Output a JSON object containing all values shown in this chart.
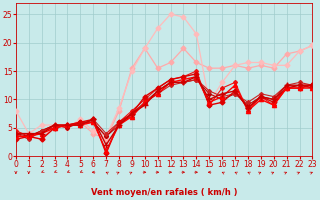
{
  "background_color": "#c8eaea",
  "grid_color": "#a0cccc",
  "xlabel": "Vent moyen/en rafales ( km/h )",
  "xlim": [
    0,
    23
  ],
  "ylim": [
    0,
    27
  ],
  "yticks": [
    0,
    5,
    10,
    15,
    20,
    25
  ],
  "xticks": [
    0,
    1,
    2,
    3,
    4,
    5,
    6,
    7,
    8,
    9,
    10,
    11,
    12,
    13,
    14,
    15,
    16,
    17,
    18,
    19,
    20,
    21,
    22,
    23
  ],
  "series": [
    {
      "x": [
        0,
        1,
        2,
        3,
        4,
        5,
        6,
        7,
        8,
        9,
        10,
        11,
        12,
        13,
        14,
        15,
        16,
        17,
        18,
        19,
        20,
        21,
        22,
        23
      ],
      "y": [
        3.0,
        3.5,
        3.0,
        5.0,
        5.5,
        6.0,
        6.5,
        0.5,
        6.0,
        7.5,
        10.5,
        12.0,
        13.5,
        14.0,
        14.5,
        9.0,
        9.5,
        11.5,
        8.5,
        10.5,
        9.5,
        12.0,
        12.0,
        12.5
      ],
      "color": "#dd0000",
      "marker": "D",
      "markersize": 2.5,
      "linewidth": 1.0,
      "zorder": 5
    },
    {
      "x": [
        0,
        1,
        2,
        3,
        4,
        5,
        6,
        7,
        8,
        9,
        10,
        11,
        12,
        13,
        14,
        15,
        16,
        17,
        18,
        19,
        20,
        21,
        22,
        23
      ],
      "y": [
        3.5,
        3.5,
        4.0,
        5.0,
        5.5,
        5.5,
        6.0,
        1.0,
        5.5,
        7.0,
        9.5,
        11.0,
        13.0,
        13.5,
        14.0,
        9.5,
        10.5,
        12.5,
        8.0,
        10.0,
        9.0,
        12.0,
        12.0,
        12.0
      ],
      "color": "#ff0000",
      "marker": "^",
      "markersize": 3,
      "linewidth": 1.0,
      "zorder": 5
    },
    {
      "x": [
        0,
        1,
        2,
        3,
        4,
        5,
        6,
        7,
        8,
        9,
        10,
        11,
        12,
        13,
        14,
        15,
        16,
        17,
        18,
        19,
        20,
        21,
        22,
        23
      ],
      "y": [
        4.0,
        4.0,
        4.0,
        5.5,
        5.5,
        5.5,
        6.5,
        2.0,
        5.5,
        7.5,
        9.0,
        11.5,
        13.0,
        13.0,
        14.0,
        10.0,
        11.0,
        11.5,
        8.5,
        10.5,
        10.0,
        12.5,
        12.5,
        12.5
      ],
      "color": "#cc0000",
      "marker": "+",
      "markersize": 4,
      "linewidth": 1.0,
      "zorder": 5
    },
    {
      "x": [
        0,
        1,
        2,
        3,
        4,
        5,
        6,
        7,
        8,
        9,
        10,
        11,
        12,
        13,
        14,
        15,
        16,
        17,
        18,
        19,
        20,
        21,
        22,
        23
      ],
      "y": [
        4.5,
        3.5,
        4.5,
        5.5,
        5.5,
        6.0,
        6.0,
        3.5,
        6.0,
        8.0,
        10.0,
        12.0,
        13.5,
        14.0,
        15.0,
        9.0,
        12.0,
        13.0,
        8.0,
        10.5,
        9.0,
        12.0,
        12.5,
        12.5
      ],
      "color": "#ee1111",
      "marker": "D",
      "markersize": 2,
      "linewidth": 0.8,
      "zorder": 4
    },
    {
      "x": [
        0,
        1,
        2,
        3,
        4,
        5,
        6,
        7,
        8,
        9,
        10,
        11,
        12,
        13,
        14,
        15,
        16,
        17,
        18,
        19,
        20,
        21,
        22,
        23
      ],
      "y": [
        4.0,
        3.5,
        4.5,
        5.5,
        5.0,
        6.0,
        6.0,
        3.5,
        5.5,
        7.5,
        9.5,
        11.5,
        13.0,
        13.0,
        13.5,
        11.0,
        10.0,
        11.0,
        9.0,
        10.5,
        10.0,
        12.0,
        12.5,
        12.0
      ],
      "color": "#bb0000",
      "marker": "D",
      "markersize": 2,
      "linewidth": 0.8,
      "zorder": 4
    },
    {
      "x": [
        0,
        1,
        2,
        3,
        4,
        5,
        6,
        7,
        8,
        9,
        10,
        11,
        12,
        13,
        14,
        15,
        16,
        17,
        18,
        19,
        20,
        21,
        22,
        23
      ],
      "y": [
        4.0,
        3.0,
        4.5,
        5.0,
        5.5,
        5.5,
        6.5,
        4.0,
        6.0,
        7.0,
        9.5,
        11.0,
        12.5,
        13.0,
        13.5,
        11.5,
        10.5,
        11.0,
        9.5,
        11.0,
        10.5,
        12.5,
        13.0,
        12.5
      ],
      "color": "#cc2222",
      "marker": "D",
      "markersize": 2,
      "linewidth": 0.8,
      "zorder": 4
    },
    {
      "x": [
        0,
        1,
        2,
        3,
        4,
        5,
        6,
        7,
        8,
        9,
        10,
        11,
        12,
        13,
        14,
        15,
        16,
        17,
        18,
        19,
        20,
        21,
        22,
        23
      ],
      "y": [
        4.5,
        3.5,
        3.0,
        5.5,
        5.5,
        6.0,
        4.0,
        3.0,
        8.0,
        15.5,
        19.0,
        15.5,
        16.5,
        19.0,
        16.5,
        15.5,
        15.5,
        16.0,
        15.5,
        16.0,
        15.5,
        18.0,
        18.5,
        19.5
      ],
      "color": "#ffaaaa",
      "marker": "D",
      "markersize": 2.5,
      "linewidth": 0.9,
      "zorder": 3
    },
    {
      "x": [
        0,
        1,
        2,
        3,
        4,
        5,
        6,
        7,
        8,
        9,
        10,
        11,
        12,
        13,
        14,
        15,
        16,
        17,
        18,
        19,
        20,
        21,
        22,
        23
      ],
      "y": [
        8.0,
        4.0,
        5.5,
        5.5,
        5.0,
        6.5,
        4.5,
        3.5,
        8.5,
        15.0,
        19.0,
        22.5,
        25.0,
        24.5,
        21.5,
        9.5,
        13.0,
        16.0,
        16.5,
        16.5,
        16.0,
        16.0,
        18.5,
        19.5
      ],
      "color": "#ffbbbb",
      "marker": "D",
      "markersize": 2.5,
      "linewidth": 0.9,
      "zorder": 3
    }
  ],
  "wind_angles": [
    180,
    180,
    225,
    225,
    225,
    225,
    270,
    315,
    45,
    45,
    90,
    90,
    90,
    90,
    90,
    270,
    315,
    315,
    315,
    45,
    45,
    45,
    45,
    45
  ],
  "arrow_color": "#cc0000",
  "text_color": "#cc0000",
  "xlabel_fontsize": 6,
  "tick_fontsize": 5.5,
  "spine_color": "#cc0000"
}
